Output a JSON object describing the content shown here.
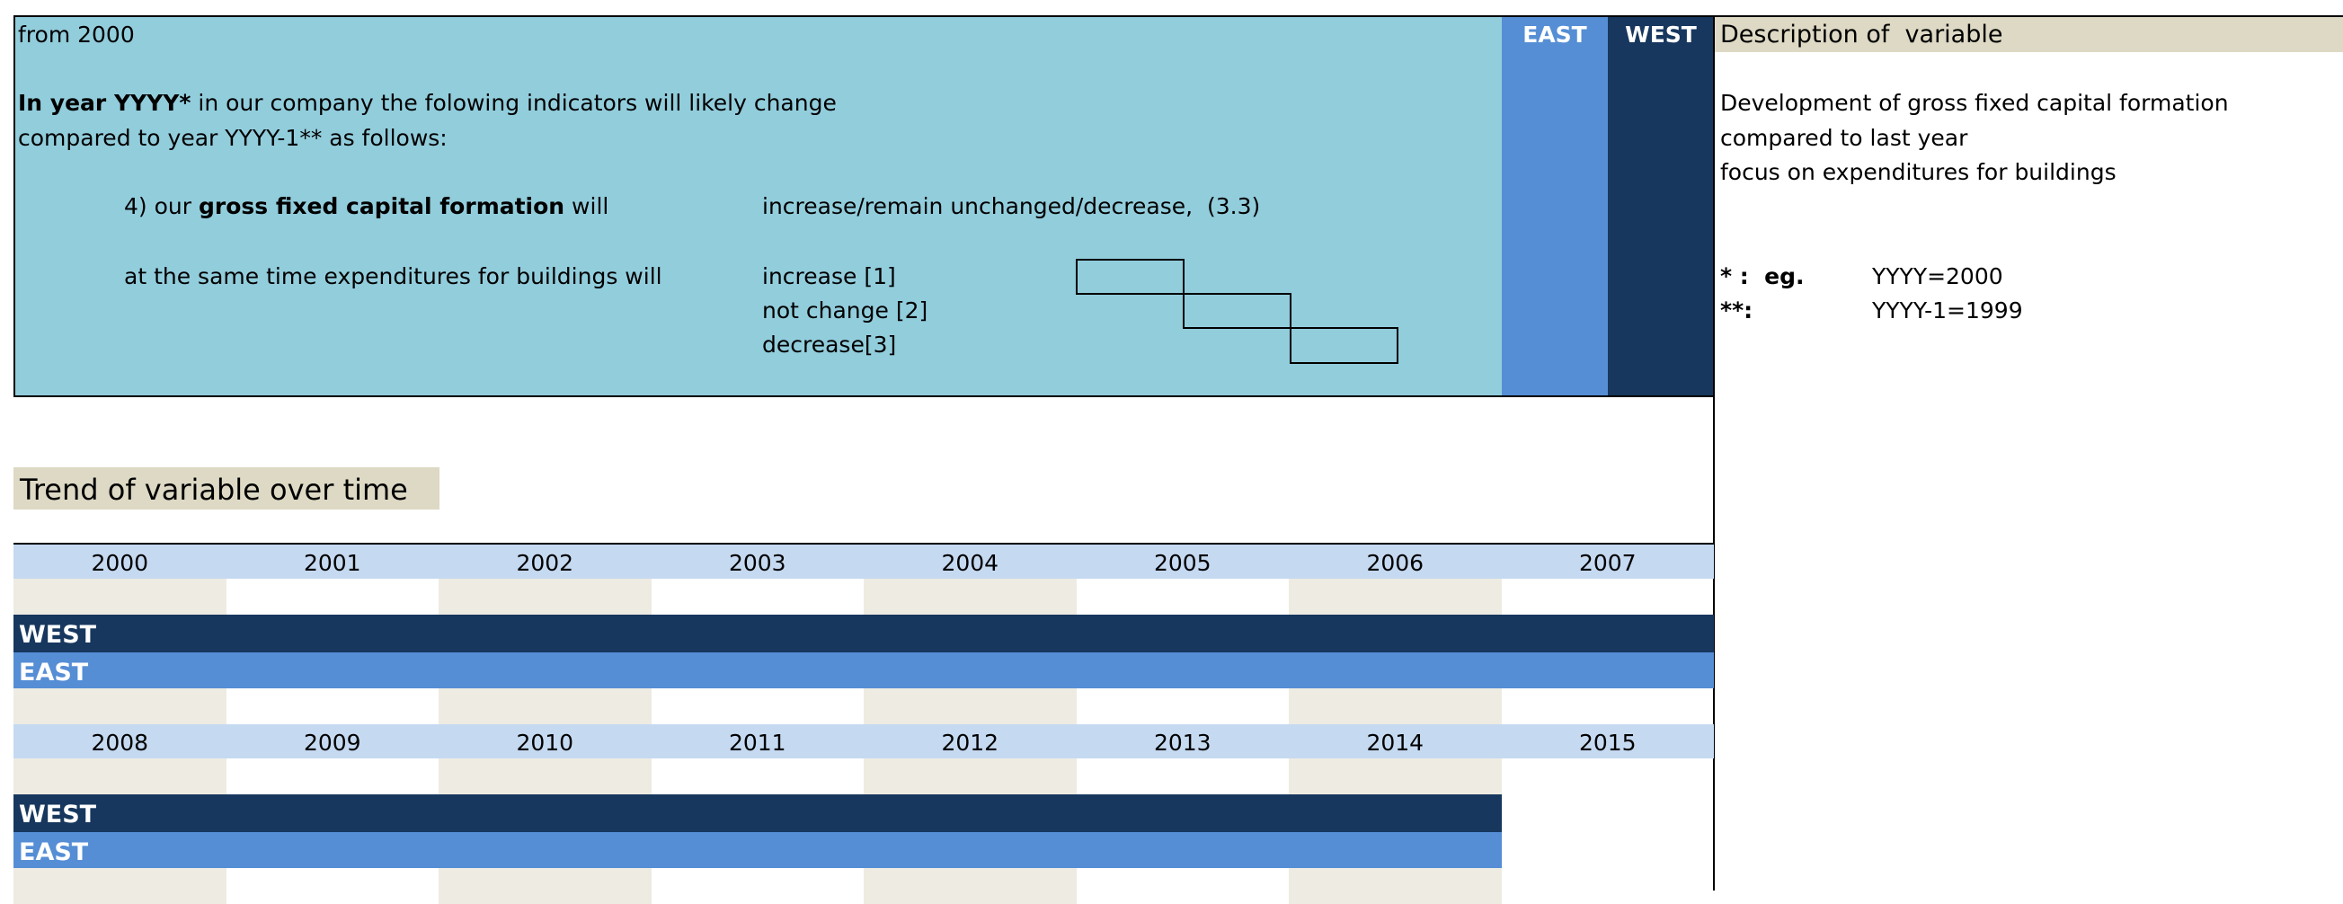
{
  "question": {
    "from": "from 2000",
    "intro_bold": "In year YYYY*",
    "intro_rest": " in our company the folowing indicators will likely change",
    "intro_line2": "compared to year YYYY-1** as follows:",
    "item_prefix": "4) our ",
    "item_bold": "gross fixed capital formation",
    "item_suffix": " will",
    "item_options": "increase/remain unchanged/decrease,",
    "item_code": "(3.3)",
    "sub_item": "at the same time expenditures for buildings will",
    "options": [
      "increase [1]",
      "not change [2]",
      "decrease[3]"
    ]
  },
  "columns": [
    "EAST",
    "WEST"
  ],
  "description": {
    "title": "Description of  variable",
    "lines": [
      "Development of gross fixed capital formation",
      "compared to last year",
      "focus on expenditures for buildings"
    ],
    "notes": [
      {
        "key": "* :  eg.",
        "value": "YYYY=2000"
      },
      {
        "key": "**:",
        "value": "YYYY-1=1999"
      }
    ]
  },
  "trend": {
    "title": "Trend of variable over time",
    "blocks": [
      {
        "years": [
          2000,
          2001,
          2002,
          2003,
          2004,
          2005,
          2006,
          2007
        ],
        "rows": [
          "WEST",
          "EAST"
        ]
      },
      {
        "years": [
          2008,
          2009,
          2010,
          2011,
          2012,
          2013,
          2014,
          2015
        ],
        "rows": [
          "WEST",
          "EAST"
        ]
      }
    ]
  }
}
